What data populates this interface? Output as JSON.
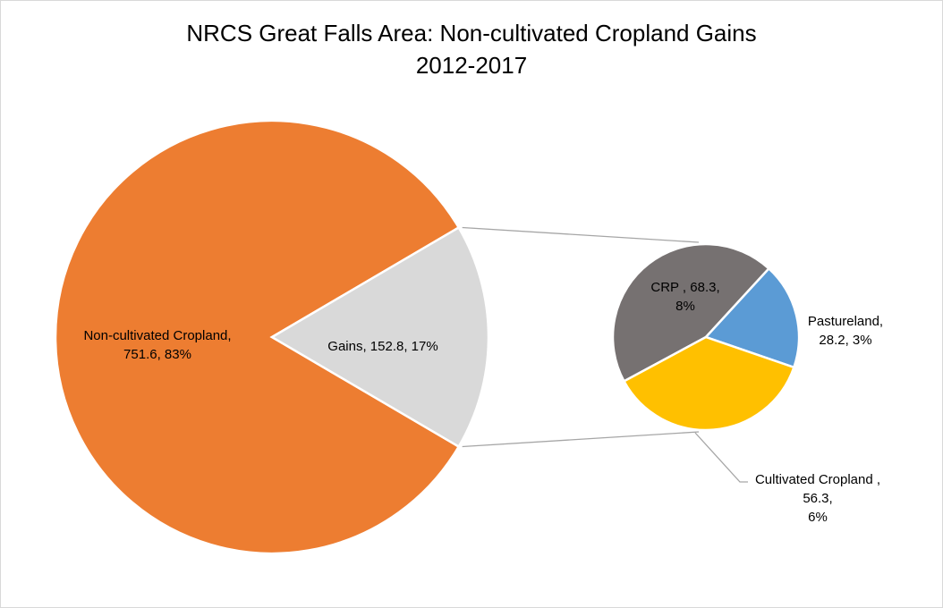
{
  "chart_data": {
    "type": "bar-of-pie",
    "title_line1": "NRCS Great Falls Area: Non-cultivated Cropland Gains",
    "title_line2": "2012-2017",
    "main_pie": {
      "slices": [
        {
          "name": "Non-cultivated Cropland",
          "value": 751.6,
          "percent": "83%",
          "color": "#ed7d31",
          "label_lines": [
            "Non-cultivated Cropland,",
            "751.6, 83%"
          ]
        },
        {
          "name": "Gains",
          "value": 152.8,
          "percent": "17%",
          "color": "#d9d9d9",
          "label_lines": [
            "Gains, 152.8, 17%"
          ]
        }
      ]
    },
    "secondary_pie": {
      "slices": [
        {
          "name": "CRP",
          "value": 68.3,
          "percent": "8%",
          "color": "#767171",
          "label_lines": [
            "CRP , 68.3,",
            "8%"
          ]
        },
        {
          "name": "Pastureland",
          "value": 28.2,
          "percent": "3%",
          "color": "#5b9bd5",
          "label_lines": [
            "Pastureland,",
            "28.2, 3%"
          ]
        },
        {
          "name": "Cultivated Cropland",
          "value": 56.3,
          "percent": "6%",
          "color": "#ffc000",
          "label_lines": [
            "Cultivated Cropland ,",
            "56.3,",
            "6%"
          ]
        }
      ]
    }
  }
}
